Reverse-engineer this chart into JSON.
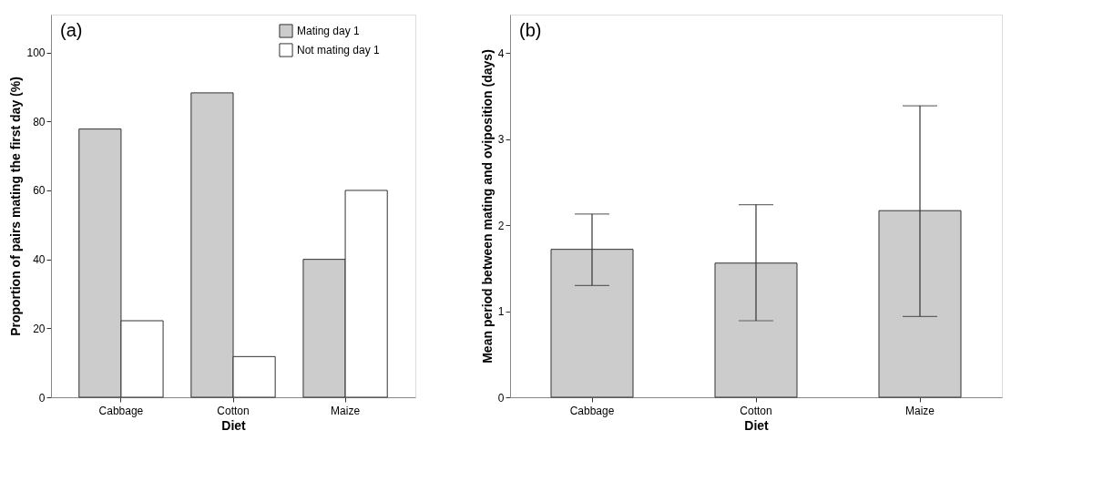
{
  "chart_data": [
    {
      "type": "bar",
      "title": "(a)",
      "xlabel": "Diet",
      "ylabel": "Proportion of pairs mating the first day (%)",
      "categories": [
        "Cabbage",
        "Cotton",
        "Maize"
      ],
      "series": [
        {
          "name": "Mating day 1",
          "color": "#cccccc",
          "values": [
            77.8,
            88.3,
            40
          ]
        },
        {
          "name": "Not mating day 1",
          "color": "#ffffff",
          "values": [
            22.2,
            11.8,
            60
          ]
        }
      ],
      "ylim": [
        0,
        111
      ],
      "yticks": [
        0,
        20,
        40,
        60,
        80,
        100
      ],
      "grid": false,
      "legend": "top right"
    },
    {
      "type": "bar",
      "title": "(b)",
      "xlabel": "Diet",
      "ylabel": "Mean period between mating and oviposition (days)",
      "categories": [
        "Cabbage",
        "Cotton",
        "Maize"
      ],
      "series": [
        {
          "color": "#cccccc",
          "values": [
            1.72,
            1.56,
            2.17
          ],
          "errors": [
            [
              1.3,
              2.13
            ],
            [
              0.89,
              2.24
            ],
            [
              0.94,
              3.39
            ]
          ]
        }
      ],
      "ylim": [
        0,
        4.45
      ],
      "yticks": [
        0,
        1,
        2,
        3,
        4
      ],
      "grid": false,
      "legend": false
    }
  ]
}
